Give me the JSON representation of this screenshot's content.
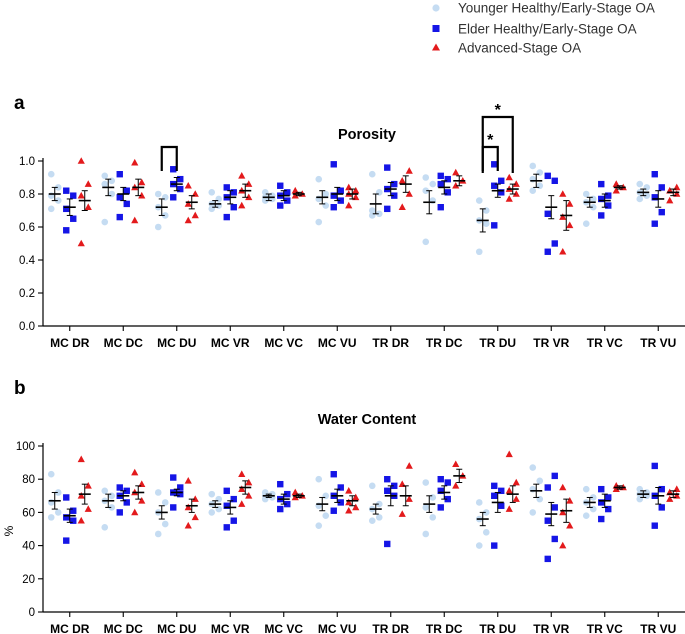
{
  "legend": [
    {
      "label": "Younger Healthy/Early-Stage OA",
      "color": "#c5dcf2",
      "marker": "circle"
    },
    {
      "label": "Elder Healthy/Early-Stage OA",
      "color": "#1515e6",
      "marker": "square"
    },
    {
      "label": "Advanced-Stage OA",
      "color": "#e31a1c",
      "marker": "triangle"
    }
  ],
  "colors": {
    "younger": "#c5dcf2",
    "elder": "#1515e6",
    "advanced": "#e31a1c",
    "axis": "#000000"
  },
  "chart_data": [
    {
      "panel_label": "a",
      "type": "scatter",
      "title": "Porosity",
      "xlabel": "",
      "ylabel": "",
      "ylim": [
        0,
        1.0
      ],
      "yticks": [
        "0.0",
        "0.2",
        "0.4",
        "0.6",
        "0.8",
        "1.0"
      ],
      "categories": [
        "MC DR",
        "MC DC",
        "MC DU",
        "MC VR",
        "MC VC",
        "MC VU",
        "TR DR",
        "TR DC",
        "TR DU",
        "TR VR",
        "TR VC",
        "TR VU"
      ],
      "significance": [
        {
          "category": "MC DU",
          "from": "Younger Healthy/Early-Stage OA",
          "to": "Elder Healthy/Early-Stage OA",
          "label": ""
        },
        {
          "category": "TR DU",
          "from": "Younger Healthy/Early-Stage OA",
          "to": "Elder Healthy/Early-Stage OA",
          "label": "*"
        },
        {
          "category": "TR DU",
          "from": "Younger Healthy/Early-Stage OA",
          "to": "Advanced-Stage OA",
          "label": "*"
        }
      ],
      "series": [
        {
          "name": "Younger Healthy/Early-Stage OA",
          "mean": [
            0.8,
            0.84,
            0.72,
            0.74,
            0.78,
            0.78,
            0.74,
            0.75,
            0.64,
            0.88,
            0.75,
            0.81
          ],
          "sem": [
            0.04,
            0.05,
            0.05,
            0.02,
            0.02,
            0.04,
            0.06,
            0.07,
            0.07,
            0.04,
            0.03,
            0.02
          ],
          "points": [
            [
              0.92,
              0.84,
              0.79,
              0.76,
              0.71
            ],
            [
              0.91,
              0.88,
              0.86,
              0.8,
              0.63
            ],
            [
              0.8,
              0.78,
              0.72,
              0.67,
              0.6
            ],
            [
              0.81,
              0.77,
              0.74,
              0.73,
              0.71
            ],
            [
              0.81,
              0.79,
              0.78,
              0.77,
              0.76
            ],
            [
              0.89,
              0.8,
              0.77,
              0.73,
              0.63
            ],
            [
              0.92,
              0.81,
              0.7,
              0.68,
              0.67
            ],
            [
              0.9,
              0.86,
              0.82,
              0.76,
              0.51
            ],
            [
              0.76,
              0.7,
              0.64,
              0.62,
              0.45
            ],
            [
              0.97,
              0.93,
              0.89,
              0.85,
              0.82
            ],
            [
              0.8,
              0.77,
              0.75,
              0.72,
              0.62
            ],
            [
              0.86,
              0.84,
              0.81,
              0.79,
              0.77
            ]
          ]
        },
        {
          "name": "Elder Healthy/Early-Stage OA",
          "mean": [
            0.72,
            0.8,
            0.86,
            0.78,
            0.79,
            0.8,
            0.83,
            0.84,
            0.82,
            0.72,
            0.76,
            0.77
          ],
          "sem": [
            0.05,
            0.04,
            0.04,
            0.04,
            0.03,
            0.04,
            0.04,
            0.04,
            0.04,
            0.07,
            0.04,
            0.05
          ],
          "points": [
            [
              0.82,
              0.79,
              0.71,
              0.65,
              0.58
            ],
            [
              0.92,
              0.82,
              0.78,
              0.74,
              0.66
            ],
            [
              0.95,
              0.89,
              0.86,
              0.83,
              0.78
            ],
            [
              0.84,
              0.81,
              0.78,
              0.72,
              0.66
            ],
            [
              0.85,
              0.81,
              0.79,
              0.76,
              0.73
            ],
            [
              0.98,
              0.82,
              0.79,
              0.76,
              0.72
            ],
            [
              0.96,
              0.86,
              0.83,
              0.79,
              0.71
            ],
            [
              0.91,
              0.89,
              0.86,
              0.81,
              0.72
            ],
            [
              0.98,
              0.88,
              0.85,
              0.81,
              0.61
            ],
            [
              0.91,
              0.88,
              0.68,
              0.5,
              0.45
            ],
            [
              0.86,
              0.79,
              0.77,
              0.73,
              0.67
            ],
            [
              0.92,
              0.84,
              0.78,
              0.69,
              0.62
            ]
          ]
        },
        {
          "name": "Advanced-Stage OA",
          "mean": [
            0.76,
            0.84,
            0.75,
            0.82,
            0.8,
            0.8,
            0.86,
            0.88,
            0.83,
            0.67,
            0.84,
            0.81
          ],
          "sem": [
            0.06,
            0.05,
            0.04,
            0.04,
            0.01,
            0.03,
            0.05,
            0.03,
            0.03,
            0.09,
            0.01,
            0.02
          ],
          "points": [
            [
              1.0,
              0.86,
              0.79,
              0.72,
              0.5
            ],
            [
              0.99,
              0.87,
              0.84,
              0.79,
              0.64
            ],
            [
              0.85,
              0.8,
              0.74,
              0.67,
              0.64
            ],
            [
              0.91,
              0.86,
              0.82,
              0.78,
              0.73
            ],
            [
              0.82,
              0.8,
              0.79
            ],
            [
              0.84,
              0.82,
              0.8,
              0.78,
              0.73
            ],
            [
              0.94,
              0.88,
              0.8,
              0.72
            ],
            [
              0.93,
              0.88,
              0.85
            ],
            [
              0.9,
              0.86,
              0.83,
              0.8,
              0.77
            ],
            [
              0.8,
              0.74,
              0.66,
              0.61,
              0.45
            ],
            [
              0.86,
              0.84,
              0.82
            ],
            [
              0.84,
              0.82,
              0.8,
              0.76
            ]
          ]
        }
      ]
    },
    {
      "panel_label": "b",
      "type": "scatter",
      "title": "Water Content",
      "xlabel": "",
      "ylabel": "%",
      "ylim": [
        0,
        100
      ],
      "yticks": [
        "0",
        "20",
        "40",
        "60",
        "80",
        "100"
      ],
      "categories": [
        "MC DR",
        "MC DC",
        "MC DU",
        "MC VR",
        "MC VC",
        "MC VU",
        "TR DR",
        "TR DC",
        "TR DU",
        "TR VR",
        "TR VC",
        "TR VU"
      ],
      "series": [
        {
          "name": "Younger Healthy/Early-Stage OA",
          "mean": [
            67,
            67,
            60,
            65,
            70,
            65,
            62,
            65,
            56,
            73,
            66,
            71
          ],
          "sem": [
            5,
            4,
            4,
            2,
            1,
            4,
            3,
            5,
            4,
            4,
            3,
            2
          ],
          "points": [
            [
              83,
              72,
              66,
              60,
              57
            ],
            [
              73,
              70,
              67,
              63,
              51
            ],
            [
              72,
              66,
              60,
              53,
              47
            ],
            [
              71,
              68,
              65,
              62,
              60
            ],
            [
              72,
              71,
              70,
              69,
              68
            ],
            [
              80,
              70,
              64,
              58,
              52
            ],
            [
              76,
              65,
              62,
              57,
              55
            ],
            [
              78,
              69,
              63,
              57,
              47
            ],
            [
              66,
              60,
              56,
              48,
              40
            ],
            [
              87,
              79,
              74,
              68,
              60
            ],
            [
              74,
              69,
              66,
              62,
              58
            ],
            [
              74,
              72,
              71,
              70,
              68
            ]
          ]
        },
        {
          "name": "Elder Healthy/Early-Stage OA",
          "mean": [
            58,
            70,
            72,
            63,
            68,
            70,
            70,
            72,
            66,
            59,
            67,
            70
          ],
          "sem": [
            4,
            3,
            2,
            4,
            3,
            4,
            6,
            4,
            6,
            7,
            4,
            5
          ],
          "points": [
            [
              69,
              61,
              57,
              55,
              43
            ],
            [
              75,
              73,
              70,
              66,
              60
            ],
            [
              81,
              75,
              72,
              71,
              63
            ],
            [
              73,
              68,
              64,
              55,
              51
            ],
            [
              77,
              71,
              68,
              65,
              62
            ],
            [
              83,
              75,
              70,
              66,
              61
            ],
            [
              80,
              76,
              73,
              70,
              41
            ],
            [
              80,
              78,
              73,
              68,
              63
            ],
            [
              76,
              73,
              70,
              64,
              40
            ],
            [
              82,
              75,
              63,
              55,
              44,
              32
            ],
            [
              74,
              69,
              66,
              62,
              56
            ],
            [
              88,
              74,
              70,
              63,
              52
            ]
          ]
        },
        {
          "name": "Advanced-Stage OA",
          "mean": [
            71,
            72,
            64,
            75,
            70,
            67,
            70,
            82,
            71,
            61,
            75,
            71
          ],
          "sem": [
            6,
            4,
            4,
            4,
            1,
            3,
            6,
            4,
            5,
            7,
            1,
            2
          ],
          "points": [
            [
              92,
              76,
              70,
              62,
              55
            ],
            [
              84,
              77,
              72,
              67,
              60
            ],
            [
              79,
              68,
              63,
              57,
              52
            ],
            [
              83,
              78,
              74,
              70,
              65
            ],
            [
              72,
              70,
              69
            ],
            [
              73,
              69,
              66,
              63,
              61
            ],
            [
              88,
              77,
              68,
              59
            ],
            [
              89,
              82,
              76
            ],
            [
              95,
              78,
              73,
              68,
              62
            ],
            [
              75,
              67,
              60,
              52,
              40
            ],
            [
              76,
              75,
              74
            ],
            [
              74,
              72,
              70,
              68
            ]
          ]
        }
      ]
    }
  ]
}
